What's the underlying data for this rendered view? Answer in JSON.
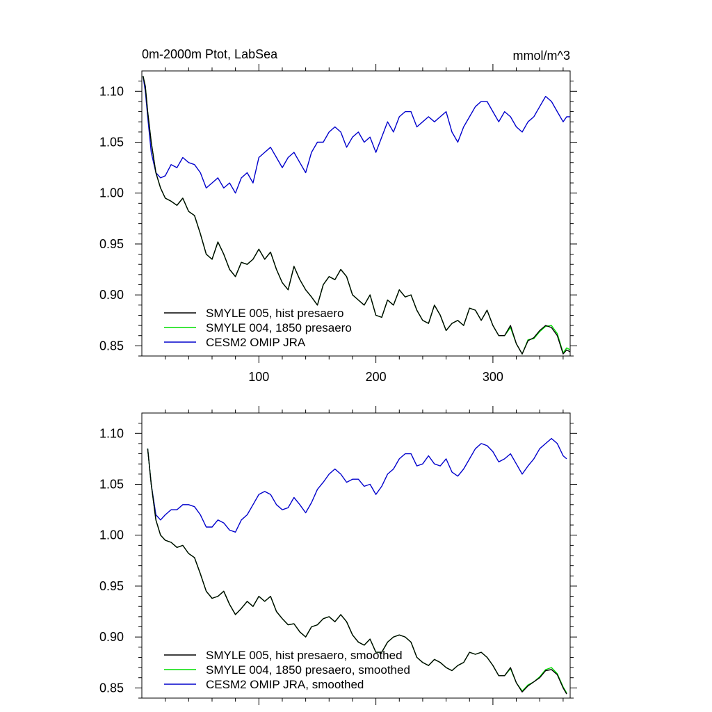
{
  "page": {
    "title_left": "0m-2000m Ptot, LabSea",
    "title_right": "mmol/m^3"
  },
  "chart_data": [
    {
      "type": "line",
      "title": "0m-2000m Ptot, LabSea",
      "units": "mmol/m^3",
      "xlim": [
        0,
        366
      ],
      "ylim": [
        0.84,
        1.12
      ],
      "xticks": [
        100,
        200,
        300
      ],
      "xtick_labels": [
        "100",
        "200",
        "300"
      ],
      "yticks": [
        0.85,
        0.9,
        0.95,
        1.0,
        1.05,
        1.1
      ],
      "ytick_labels": [
        "0.85",
        "0.90",
        "0.95",
        "1.00",
        "1.05",
        "1.10"
      ],
      "legend_placement": "bottom-left",
      "series": [
        {
          "name": "SMYLE 005, hist presaero",
          "color": "#000000",
          "x": [
            1,
            3,
            5,
            8,
            12,
            16,
            20,
            25,
            30,
            35,
            40,
            45,
            50,
            55,
            60,
            65,
            70,
            75,
            80,
            85,
            90,
            95,
            100,
            105,
            110,
            115,
            120,
            125,
            130,
            135,
            140,
            145,
            150,
            155,
            160,
            165,
            170,
            175,
            180,
            185,
            190,
            195,
            200,
            205,
            210,
            215,
            220,
            225,
            230,
            235,
            240,
            245,
            250,
            255,
            260,
            265,
            270,
            275,
            280,
            285,
            290,
            295,
            300,
            305,
            310,
            315,
            320,
            325,
            330,
            335,
            340,
            345,
            350,
            355,
            360,
            363,
            366
          ],
          "values": [
            1.115,
            1.105,
            1.08,
            1.05,
            1.02,
            1.005,
            0.995,
            0.992,
            0.988,
            0.995,
            0.982,
            0.978,
            0.96,
            0.94,
            0.935,
            0.952,
            0.94,
            0.925,
            0.918,
            0.932,
            0.93,
            0.935,
            0.945,
            0.935,
            0.942,
            0.925,
            0.912,
            0.905,
            0.928,
            0.915,
            0.905,
            0.898,
            0.89,
            0.91,
            0.918,
            0.915,
            0.925,
            0.918,
            0.9,
            0.895,
            0.89,
            0.9,
            0.88,
            0.878,
            0.895,
            0.89,
            0.905,
            0.898,
            0.9,
            0.885,
            0.875,
            0.872,
            0.89,
            0.88,
            0.865,
            0.872,
            0.875,
            0.87,
            0.887,
            0.885,
            0.875,
            0.885,
            0.87,
            0.86,
            0.86,
            0.87,
            0.852,
            0.842,
            0.855,
            0.858,
            0.865,
            0.87,
            0.868,
            0.86,
            0.842,
            0.846,
            0.844
          ]
        },
        {
          "name": "SMYLE 004, 1850 presaero",
          "color": "#00dd00",
          "x": [
            1,
            3,
            5,
            8,
            12,
            16,
            20,
            25,
            30,
            35,
            40,
            45,
            50,
            55,
            60,
            65,
            70,
            75,
            80,
            85,
            90,
            95,
            100,
            105,
            110,
            115,
            120,
            125,
            130,
            135,
            140,
            145,
            150,
            155,
            160,
            165,
            170,
            175,
            180,
            185,
            190,
            195,
            200,
            205,
            210,
            215,
            220,
            225,
            230,
            235,
            240,
            245,
            250,
            255,
            260,
            265,
            270,
            275,
            280,
            285,
            290,
            295,
            300,
            305,
            310,
            315,
            320,
            325,
            330,
            335,
            340,
            345,
            350,
            355,
            360,
            363,
            366
          ],
          "values": [
            1.115,
            1.105,
            1.08,
            1.05,
            1.02,
            1.005,
            0.995,
            0.992,
            0.988,
            0.995,
            0.982,
            0.978,
            0.96,
            0.94,
            0.935,
            0.952,
            0.94,
            0.925,
            0.918,
            0.932,
            0.93,
            0.935,
            0.945,
            0.935,
            0.942,
            0.925,
            0.912,
            0.905,
            0.928,
            0.915,
            0.905,
            0.898,
            0.89,
            0.91,
            0.918,
            0.915,
            0.925,
            0.918,
            0.9,
            0.895,
            0.89,
            0.9,
            0.88,
            0.878,
            0.895,
            0.89,
            0.905,
            0.898,
            0.9,
            0.885,
            0.875,
            0.872,
            0.89,
            0.88,
            0.865,
            0.872,
            0.875,
            0.87,
            0.887,
            0.885,
            0.875,
            0.885,
            0.87,
            0.86,
            0.86,
            0.868,
            0.852,
            0.842,
            0.856,
            0.857,
            0.864,
            0.869,
            0.87,
            0.862,
            0.843,
            0.848,
            0.846
          ]
        },
        {
          "name": "CESM2 OMIP JRA",
          "color": "#0000cc",
          "x": [
            1,
            3,
            5,
            8,
            12,
            16,
            20,
            25,
            30,
            35,
            40,
            45,
            50,
            55,
            60,
            65,
            70,
            75,
            80,
            85,
            90,
            95,
            100,
            105,
            110,
            115,
            120,
            125,
            130,
            135,
            140,
            145,
            150,
            155,
            160,
            165,
            170,
            175,
            180,
            185,
            190,
            195,
            200,
            205,
            210,
            215,
            220,
            225,
            230,
            235,
            240,
            245,
            250,
            255,
            260,
            265,
            270,
            275,
            280,
            285,
            290,
            295,
            300,
            305,
            310,
            315,
            320,
            325,
            330,
            335,
            340,
            345,
            350,
            355,
            360,
            363,
            366
          ],
          "values": [
            1.115,
            1.1,
            1.075,
            1.04,
            1.02,
            1.015,
            1.017,
            1.028,
            1.025,
            1.035,
            1.03,
            1.028,
            1.02,
            1.005,
            1.01,
            1.015,
            1.005,
            1.01,
            1.0,
            1.015,
            1.02,
            1.01,
            1.035,
            1.04,
            1.045,
            1.035,
            1.025,
            1.035,
            1.04,
            1.03,
            1.02,
            1.04,
            1.05,
            1.05,
            1.06,
            1.065,
            1.06,
            1.045,
            1.055,
            1.06,
            1.05,
            1.055,
            1.04,
            1.055,
            1.07,
            1.06,
            1.075,
            1.08,
            1.08,
            1.065,
            1.07,
            1.075,
            1.07,
            1.075,
            1.08,
            1.06,
            1.05,
            1.065,
            1.075,
            1.085,
            1.09,
            1.09,
            1.08,
            1.07,
            1.08,
            1.075,
            1.065,
            1.06,
            1.07,
            1.075,
            1.085,
            1.095,
            1.09,
            1.08,
            1.07,
            1.075,
            1.075
          ]
        }
      ]
    },
    {
      "type": "line",
      "xlim": [
        0,
        366
      ],
      "ylim": [
        0.84,
        1.12
      ],
      "xticks": [
        100,
        200,
        300
      ],
      "yticks": [
        0.85,
        0.9,
        0.95,
        1.0,
        1.05,
        1.1
      ],
      "ytick_labels": [
        "0.85",
        "0.90",
        "0.95",
        "1.00",
        "1.05",
        "1.10"
      ],
      "legend_placement": "bottom-left",
      "series": [
        {
          "name": "SMYLE 005, hist presaero, smoothed",
          "color": "#000000",
          "x": [
            5,
            8,
            12,
            16,
            20,
            25,
            30,
            35,
            40,
            45,
            50,
            55,
            60,
            65,
            70,
            75,
            80,
            85,
            90,
            95,
            100,
            105,
            110,
            115,
            120,
            125,
            130,
            135,
            140,
            145,
            150,
            155,
            160,
            165,
            170,
            175,
            180,
            185,
            190,
            195,
            200,
            205,
            210,
            215,
            220,
            225,
            230,
            235,
            240,
            245,
            250,
            255,
            260,
            265,
            270,
            275,
            280,
            285,
            290,
            295,
            300,
            305,
            310,
            315,
            320,
            325,
            330,
            335,
            340,
            345,
            350,
            355,
            360,
            363
          ],
          "values": [
            1.085,
            1.05,
            1.015,
            1.0,
            0.995,
            0.993,
            0.988,
            0.99,
            0.982,
            0.978,
            0.962,
            0.945,
            0.938,
            0.94,
            0.945,
            0.932,
            0.922,
            0.928,
            0.935,
            0.93,
            0.94,
            0.935,
            0.94,
            0.925,
            0.918,
            0.912,
            0.913,
            0.905,
            0.9,
            0.91,
            0.912,
            0.918,
            0.92,
            0.915,
            0.922,
            0.915,
            0.902,
            0.895,
            0.892,
            0.898,
            0.885,
            0.885,
            0.895,
            0.9,
            0.902,
            0.9,
            0.895,
            0.88,
            0.875,
            0.872,
            0.878,
            0.875,
            0.87,
            0.867,
            0.872,
            0.875,
            0.885,
            0.883,
            0.885,
            0.88,
            0.872,
            0.862,
            0.862,
            0.87,
            0.855,
            0.846,
            0.852,
            0.856,
            0.86,
            0.867,
            0.868,
            0.863,
            0.85,
            0.844
          ]
        },
        {
          "name": "SMYLE 004, 1850 presaero, smoothed",
          "color": "#00dd00",
          "x": [
            5,
            8,
            12,
            16,
            20,
            25,
            30,
            35,
            40,
            45,
            50,
            55,
            60,
            65,
            70,
            75,
            80,
            85,
            90,
            95,
            100,
            105,
            110,
            115,
            120,
            125,
            130,
            135,
            140,
            145,
            150,
            155,
            160,
            165,
            170,
            175,
            180,
            185,
            190,
            195,
            200,
            205,
            210,
            215,
            220,
            225,
            230,
            235,
            240,
            245,
            250,
            255,
            260,
            265,
            270,
            275,
            280,
            285,
            290,
            295,
            300,
            305,
            310,
            315,
            320,
            325,
            330,
            335,
            340,
            345,
            350,
            355,
            360,
            363
          ],
          "values": [
            1.085,
            1.05,
            1.015,
            1.0,
            0.995,
            0.993,
            0.988,
            0.99,
            0.982,
            0.978,
            0.962,
            0.945,
            0.938,
            0.94,
            0.945,
            0.932,
            0.922,
            0.928,
            0.935,
            0.93,
            0.94,
            0.935,
            0.94,
            0.925,
            0.918,
            0.912,
            0.913,
            0.905,
            0.9,
            0.91,
            0.912,
            0.918,
            0.92,
            0.915,
            0.922,
            0.915,
            0.902,
            0.895,
            0.892,
            0.898,
            0.885,
            0.885,
            0.895,
            0.9,
            0.902,
            0.9,
            0.895,
            0.88,
            0.875,
            0.872,
            0.878,
            0.875,
            0.87,
            0.867,
            0.872,
            0.875,
            0.885,
            0.883,
            0.885,
            0.88,
            0.872,
            0.862,
            0.862,
            0.869,
            0.855,
            0.847,
            0.853,
            0.856,
            0.861,
            0.868,
            0.87,
            0.864,
            0.851,
            0.845
          ]
        },
        {
          "name": "CESM2 OMIP JRA, smoothed",
          "color": "#0000cc",
          "x": [
            5,
            8,
            12,
            16,
            20,
            25,
            30,
            35,
            40,
            45,
            50,
            55,
            60,
            65,
            70,
            75,
            80,
            85,
            90,
            95,
            100,
            105,
            110,
            115,
            120,
            125,
            130,
            135,
            140,
            145,
            150,
            155,
            160,
            165,
            170,
            175,
            180,
            185,
            190,
            195,
            200,
            205,
            210,
            215,
            220,
            225,
            230,
            235,
            240,
            245,
            250,
            255,
            260,
            265,
            270,
            275,
            280,
            285,
            290,
            295,
            300,
            305,
            310,
            315,
            320,
            325,
            330,
            335,
            340,
            345,
            350,
            355,
            360,
            363
          ],
          "values": [
            1.085,
            1.05,
            1.02,
            1.015,
            1.02,
            1.025,
            1.025,
            1.03,
            1.03,
            1.028,
            1.02,
            1.008,
            1.008,
            1.015,
            1.012,
            1.005,
            1.003,
            1.015,
            1.02,
            1.03,
            1.04,
            1.043,
            1.04,
            1.03,
            1.025,
            1.027,
            1.037,
            1.03,
            1.022,
            1.032,
            1.045,
            1.052,
            1.06,
            1.065,
            1.06,
            1.052,
            1.055,
            1.055,
            1.048,
            1.05,
            1.04,
            1.048,
            1.06,
            1.065,
            1.075,
            1.08,
            1.08,
            1.068,
            1.07,
            1.078,
            1.07,
            1.068,
            1.075,
            1.062,
            1.058,
            1.065,
            1.075,
            1.085,
            1.09,
            1.088,
            1.082,
            1.072,
            1.075,
            1.08,
            1.07,
            1.06,
            1.068,
            1.075,
            1.085,
            1.09,
            1.095,
            1.09,
            1.078,
            1.075
          ]
        }
      ]
    }
  ]
}
